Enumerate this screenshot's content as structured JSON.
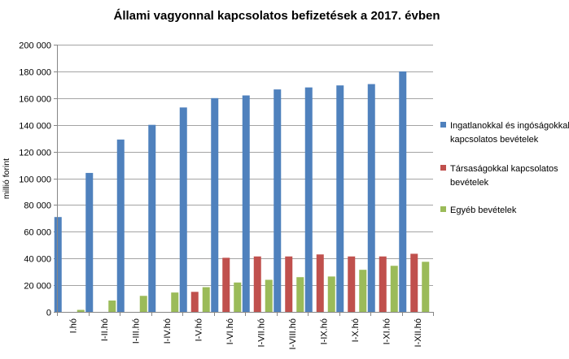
{
  "chart_data": {
    "type": "bar",
    "title": "Állami vagyonnal  kapcsolatos befizetések a 2017. évben",
    "xlabel": "",
    "ylabel": "millió forint",
    "ylim": [
      0,
      200000
    ],
    "yticks": [
      0,
      20000,
      40000,
      60000,
      80000,
      100000,
      120000,
      140000,
      160000,
      180000,
      200000
    ],
    "ytick_labels": [
      "0",
      "20 000",
      "40 000",
      "60 000",
      "80 000",
      "100 000",
      "120 000",
      "140 000",
      "160 000",
      "180 000",
      "200 000"
    ],
    "grid": true,
    "legend_position": "right",
    "categories": [
      "I.hó",
      "I-II.hó",
      "I-III.hó",
      "I-IV.hó",
      "I-V.hó",
      "I-VI.hó",
      "I-VII.hó",
      "I-VIII.hó",
      "I-IX.hó",
      "I-X.hó",
      "I-XI.hó",
      "I-XII.hó"
    ],
    "series": [
      {
        "name": "Ingatlanokkal és ingóságokkal kapcsolatos bevételek",
        "legend_lines": [
          "Ingatlanokkal és ingóságokkal",
          "kapcsolatos bevételek"
        ],
        "color": "#4f81bd",
        "values": [
          71000,
          104000,
          129000,
          140000,
          153000,
          160000,
          162000,
          166500,
          168000,
          169500,
          170500,
          180000
        ]
      },
      {
        "name": "Társaságokkal kapcsolatos bevételek",
        "legend_lines": [
          "Társaságokkal kapcsolatos",
          "bevételek"
        ],
        "color": "#c0504d",
        "values": [
          0,
          0,
          0,
          0,
          15000,
          40500,
          41500,
          41500,
          43000,
          41500,
          41500,
          43500
        ]
      },
      {
        "name": "Egyéb bevételek",
        "legend_lines": [
          "Egyéb bevételek"
        ],
        "color": "#9bbb59",
        "values": [
          1500,
          8500,
          12000,
          14500,
          18500,
          22000,
          24000,
          26000,
          26500,
          31500,
          34500,
          37500
        ]
      }
    ]
  }
}
